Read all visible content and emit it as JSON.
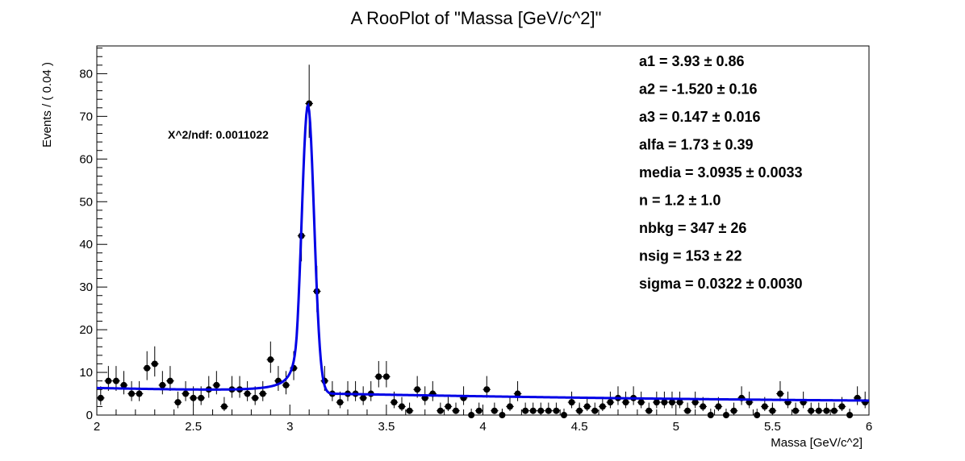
{
  "chart_data": {
    "type": "scatter",
    "title": "A RooPlot of \"Massa [GeV/c^2]\"",
    "xlabel": "Massa [GeV/c^2]",
    "ylabel": "Events / ( 0.04 )",
    "xlim": [
      2,
      6
    ],
    "ylim": [
      0,
      86.5
    ],
    "x_ticks": [
      "2",
      "2.5",
      "3",
      "3.5",
      "4",
      "4.5",
      "5",
      "5.5",
      "6"
    ],
    "y_ticks": [
      "0",
      "10",
      "20",
      "30",
      "40",
      "50",
      "60",
      "70",
      "80"
    ],
    "grid": false,
    "chi2_label": "X^2/ndf: 0.0011022",
    "params": [
      {
        "name": "a1",
        "value": "3.93",
        "error": "0.86"
      },
      {
        "name": "a2",
        "value": "-1.520",
        "error": "0.16"
      },
      {
        "name": "a3",
        "value": "0.147",
        "error": "0.016"
      },
      {
        "name": "alfa",
        "value": "1.73",
        "error": "0.39"
      },
      {
        "name": "media",
        "value": "3.0935",
        "error": "0.0033"
      },
      {
        "name": "n",
        "value": "1.2",
        "error": "1.0"
      },
      {
        "name": "nbkg",
        "value": "347",
        "error": "26"
      },
      {
        "name": "nsig",
        "value": "153",
        "error": "22"
      },
      {
        "name": "sigma",
        "value": "0.0322",
        "error": "0.0030"
      }
    ],
    "series": [
      {
        "marker_color": "#000000",
        "x": [
          2.02,
          2.06,
          2.1,
          2.14,
          2.18,
          2.22,
          2.26,
          2.3,
          2.34,
          2.38,
          2.42,
          2.46,
          2.5,
          2.54,
          2.58,
          2.62,
          2.66,
          2.7,
          2.74,
          2.78,
          2.82,
          2.86,
          2.9,
          2.94,
          2.98,
          3.02,
          3.06,
          3.1,
          3.14,
          3.18,
          3.22,
          3.26,
          3.3,
          3.34,
          3.38,
          3.42,
          3.46,
          3.5,
          3.54,
          3.58,
          3.62,
          3.66,
          3.7,
          3.74,
          3.78,
          3.82,
          3.86,
          3.9,
          3.94,
          3.98,
          4.02,
          4.06,
          4.1,
          4.14,
          4.18,
          4.22,
          4.26,
          4.3,
          4.34,
          4.38,
          4.42,
          4.46,
          4.5,
          4.54,
          4.58,
          4.62,
          4.66,
          4.7,
          4.74,
          4.78,
          4.82,
          4.86,
          4.9,
          4.94,
          4.98,
          5.02,
          5.06,
          5.1,
          5.14,
          5.18,
          5.22,
          5.26,
          5.3,
          5.34,
          5.38,
          5.42,
          5.46,
          5.5,
          5.54,
          5.58,
          5.62,
          5.66,
          5.7,
          5.74,
          5.78,
          5.82,
          5.86,
          5.9,
          5.94,
          5.98
        ],
        "y": [
          4,
          8,
          8,
          7,
          5,
          5,
          11,
          12,
          7,
          8,
          3,
          5,
          4,
          4,
          6,
          7,
          2,
          6,
          6,
          5,
          4,
          5,
          13,
          8,
          7,
          11,
          42,
          73,
          29,
          8,
          5,
          3,
          5,
          5,
          4,
          5,
          9,
          9,
          3,
          2,
          1,
          6,
          4,
          5,
          1,
          2,
          1,
          4,
          0,
          1,
          6,
          1,
          0,
          2,
          5,
          1,
          1,
          1,
          1,
          1,
          0,
          3,
          1,
          2,
          1,
          2,
          3,
          4,
          3,
          4,
          3,
          1,
          3,
          3,
          3,
          3,
          1,
          3,
          2,
          0,
          2,
          0,
          1,
          4,
          3,
          0,
          2,
          1,
          5,
          3,
          1,
          3,
          1,
          1,
          1,
          1,
          2,
          0,
          4,
          3
        ]
      }
    ]
  }
}
